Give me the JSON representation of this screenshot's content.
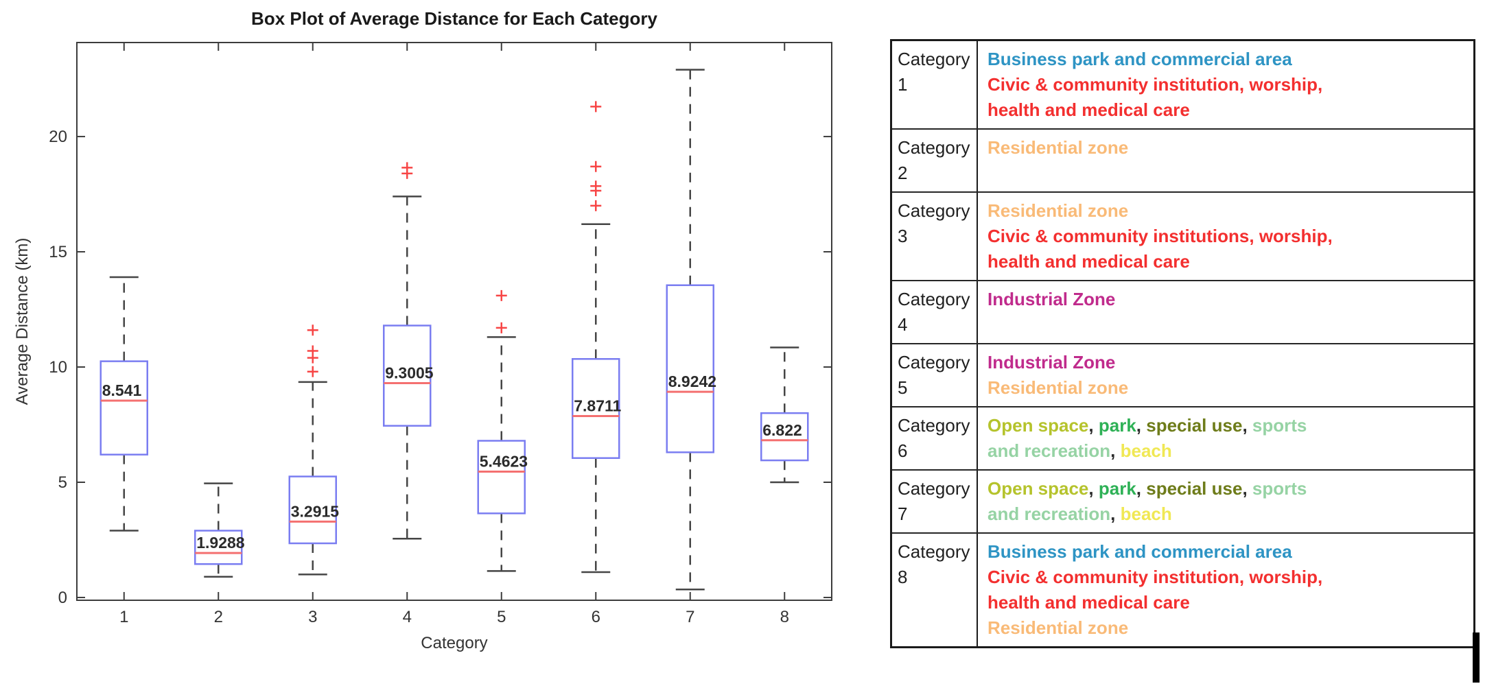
{
  "chart_data": {
    "type": "boxplot",
    "title": "Box Plot of Average Distance for Each Category",
    "xlabel": "Category",
    "ylabel": "Average Distance (km)",
    "categories": [
      "1",
      "2",
      "3",
      "4",
      "5",
      "6",
      "7",
      "8"
    ],
    "yticks": [
      0,
      5,
      10,
      15,
      20
    ],
    "ylim": [
      -0.12,
      24.08
    ],
    "grid": false,
    "boxes": [
      {
        "category": "1",
        "whisker_low": 2.9,
        "q1": 6.2,
        "median": 8.541,
        "median_label": "8.541",
        "q3": 10.25,
        "whisker_high": 13.9,
        "outliers": []
      },
      {
        "category": "2",
        "whisker_low": 0.9,
        "q1": 1.45,
        "median": 1.9288,
        "median_label": "1.9288",
        "q3": 2.9,
        "whisker_high": 4.95,
        "outliers": []
      },
      {
        "category": "3",
        "whisker_low": 1.0,
        "q1": 2.35,
        "median": 3.2915,
        "median_label": "3.2915",
        "q3": 5.25,
        "whisker_high": 9.35,
        "outliers": [
          9.8,
          10.4,
          10.7,
          11.6
        ]
      },
      {
        "category": "4",
        "whisker_low": 2.55,
        "q1": 7.45,
        "median": 9.3005,
        "median_label": "9.3005",
        "q3": 11.8,
        "whisker_high": 17.4,
        "outliers": [
          18.4,
          18.65
        ]
      },
      {
        "category": "5",
        "whisker_low": 1.15,
        "q1": 3.65,
        "median": 5.4623,
        "median_label": "5.4623",
        "q3": 6.8,
        "whisker_high": 11.3,
        "outliers": [
          11.7,
          13.1
        ]
      },
      {
        "category": "6",
        "whisker_low": 1.1,
        "q1": 6.05,
        "median": 7.8711,
        "median_label": "7.8711",
        "q3": 10.35,
        "whisker_high": 16.2,
        "outliers": [
          17.0,
          17.65,
          17.85,
          18.7,
          21.3
        ]
      },
      {
        "category": "7",
        "whisker_low": 0.35,
        "q1": 6.3,
        "median": 8.9242,
        "median_label": "8.9242",
        "q3": 13.55,
        "whisker_high": 22.9,
        "outliers": []
      },
      {
        "category": "8",
        "whisker_low": 5.0,
        "q1": 5.95,
        "median": 6.822,
        "median_label": "6.822",
        "q3": 8.0,
        "whisker_high": 10.85,
        "outliers": []
      }
    ],
    "style_colors": {
      "box_edge": "#7a7df1",
      "median_line": "#f47070",
      "whisker": "#454545",
      "outlier_marker": "#f74545",
      "axis": "#3c3c3c",
      "text": "#2b2b2b"
    }
  },
  "legend_table": {
    "colors": {
      "blue": "#2e94c4",
      "red": "#f32f2f",
      "orange": "#f9ba77",
      "magenta": "#c02b8c",
      "olive": "#b5c32c",
      "green": "#2eb156",
      "darkolive": "#6e7c1a",
      "palegreen": "#96d3a4",
      "yellow": "#f0e854",
      "dark": "#2b2b2b"
    },
    "rows": [
      {
        "category": "Category 1",
        "lines": [
          [
            {
              "text": "Business park and commercial area",
              "color": "blue"
            }
          ],
          [
            {
              "text": "Civic & community institution, worship,",
              "color": "red"
            }
          ],
          [
            {
              "text": "health and medical care",
              "color": "red"
            }
          ]
        ]
      },
      {
        "category": "Category 2",
        "lines": [
          [
            {
              "text": "Residential zone",
              "color": "orange"
            }
          ]
        ]
      },
      {
        "category": "Category 3",
        "lines": [
          [
            {
              "text": "Residential zone",
              "color": "orange"
            }
          ],
          [
            {
              "text": "Civic & community institutions, worship,",
              "color": "red"
            }
          ],
          [
            {
              "text": "health and medical care",
              "color": "red"
            }
          ]
        ]
      },
      {
        "category": "Category 4",
        "lines": [
          [
            {
              "text": "Industrial Zone",
              "color": "magenta"
            }
          ]
        ]
      },
      {
        "category": "Category 5",
        "lines": [
          [
            {
              "text": "Industrial Zone",
              "color": "magenta"
            }
          ],
          [
            {
              "text": "Residential zone",
              "color": "orange"
            }
          ]
        ]
      },
      {
        "category": "Category 6",
        "lines": [
          [
            {
              "text": "Open space",
              "color": "olive"
            },
            {
              "text": ", ",
              "color": "dark"
            },
            {
              "text": "park",
              "color": "green"
            },
            {
              "text": ", ",
              "color": "dark"
            },
            {
              "text": "special use",
              "color": "darkolive"
            },
            {
              "text": ", ",
              "color": "dark"
            },
            {
              "text": "sports",
              "color": "palegreen"
            }
          ],
          [
            {
              "text": "and recreation",
              "color": "palegreen"
            },
            {
              "text": ", ",
              "color": "dark"
            },
            {
              "text": "beach",
              "color": "yellow"
            }
          ]
        ]
      },
      {
        "category": "Category 7",
        "lines": [
          [
            {
              "text": "Open space",
              "color": "olive"
            },
            {
              "text": ", ",
              "color": "dark"
            },
            {
              "text": "park",
              "color": "green"
            },
            {
              "text": ", ",
              "color": "dark"
            },
            {
              "text": "special use",
              "color": "darkolive"
            },
            {
              "text": ", ",
              "color": "dark"
            },
            {
              "text": "sports",
              "color": "palegreen"
            }
          ],
          [
            {
              "text": "and recreation",
              "color": "palegreen"
            },
            {
              "text": ", ",
              "color": "dark"
            },
            {
              "text": "beach",
              "color": "yellow"
            }
          ]
        ]
      },
      {
        "category": "Category 8",
        "lines": [
          [
            {
              "text": "Business park and commercial area",
              "color": "blue"
            }
          ],
          [
            {
              "text": "Civic & community institution, worship,",
              "color": "red"
            }
          ],
          [
            {
              "text": "health and medical care",
              "color": "red"
            }
          ],
          [
            {
              "text": "Residential zone",
              "color": "orange"
            }
          ]
        ]
      }
    ]
  }
}
